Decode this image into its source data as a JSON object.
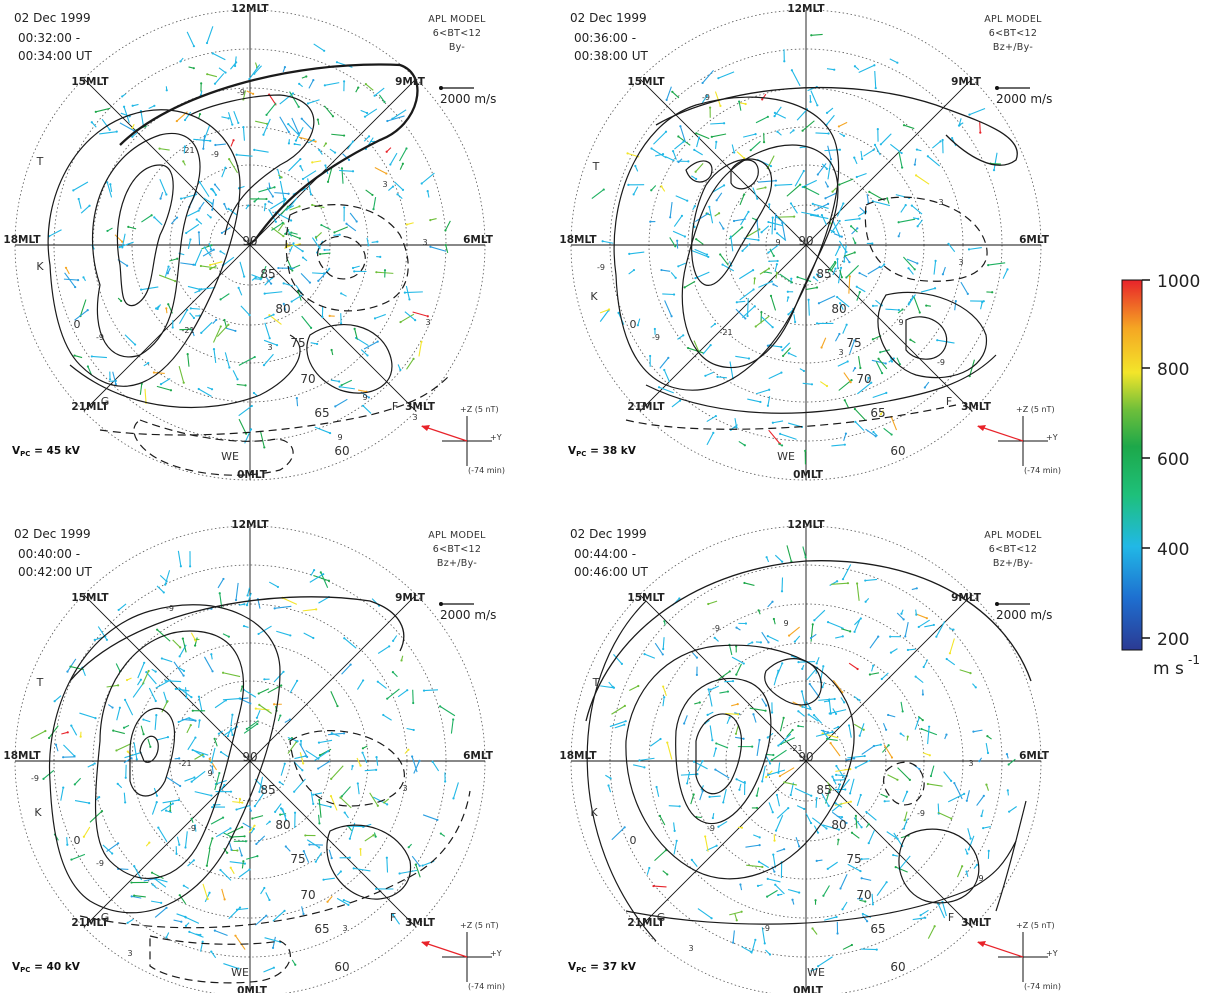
{
  "colors": {
    "contour": "#1a1a1a",
    "grid": "#555555",
    "imf_arrow": "#e8232a",
    "colorbar": [
      "#2b3a93",
      "#1e6fd0",
      "#21b8e6",
      "#1da84a",
      "#6fbf3a",
      "#f3e52a",
      "#f5a623",
      "#e8232a"
    ]
  },
  "colorbar": {
    "ticks": [
      "1000",
      "800",
      "600",
      "400",
      "200"
    ],
    "unit": "m s",
    "unit_exp": "-1"
  },
  "panels": [
    {
      "date": "02 Dec 1999",
      "time_start": "00:32:00 -",
      "time_end": "00:34:00 UT",
      "model": "APL MODEL",
      "model_bin": "6<BT<12",
      "model_imf": "By-",
      "scale_label": "2000 m/s",
      "vpc": "V",
      "vpc_sub": "PC",
      "vpc_value": " = 45 kV",
      "imf_z": "+Z  (5 nT)",
      "imf_y": "+Y",
      "imf_delay": "(-74 min)",
      "contour_labels": [
        "-9",
        "-9",
        "-21",
        "-21",
        "-9",
        "3",
        "3",
        "3",
        "3",
        "9",
        "3",
        "9"
      ],
      "sites": [
        "T",
        "K",
        "G",
        "F",
        "WE"
      ]
    },
    {
      "date": "02 Dec 1999",
      "time_start": "00:36:00 -",
      "time_end": "00:38:00 UT",
      "model": "APL MODEL",
      "model_bin": "6<BT<12",
      "model_imf": "Bz+/By-",
      "scale_label": "2000 m/s",
      "vpc": "V",
      "vpc_sub": "PC",
      "vpc_value": " = 38 kV",
      "imf_z": "+Z  (5 nT)",
      "imf_y": "+Y",
      "imf_delay": "(-74 min)",
      "contour_labels": [
        "-9",
        "-9",
        "-21",
        "-9",
        "9",
        "3",
        "3",
        "9",
        "-9",
        "3"
      ],
      "sites": [
        "T",
        "K",
        "G",
        "F",
        "WE"
      ]
    },
    {
      "date": "02 Dec 1999",
      "time_start": "00:40:00 -",
      "time_end": "00:42:00 UT",
      "model": "APL MODEL",
      "model_bin": "6<BT<12",
      "model_imf": "Bz+/By-",
      "scale_label": "2000 m/s",
      "vpc": "V",
      "vpc_sub": "PC",
      "vpc_value": " = 40 kV",
      "imf_z": "+Z  (5 nT)",
      "imf_y": "+Y",
      "imf_delay": "(-74 min)",
      "contour_labels": [
        "-9",
        "-21",
        "-9",
        "9",
        "-9",
        "-9",
        "3",
        "3",
        "3"
      ],
      "sites": [
        "T",
        "K",
        "G",
        "F",
        "WE"
      ]
    },
    {
      "date": "02 Dec 1999",
      "time_start": "00:44:00 -",
      "time_end": "00:46:00 UT",
      "model": "APL MODEL",
      "model_bin": "6<BT<12",
      "model_imf": "Bz+/By-",
      "scale_label": "2000 m/s",
      "vpc": "V",
      "vpc_sub": "PC",
      "vpc_value": " = 37 kV",
      "imf_z": "+Z  (5 nT)",
      "imf_y": "+Y",
      "imf_delay": "(-74 min)",
      "contour_labels": [
        "-9",
        "-21",
        "-9",
        "-9",
        "9",
        "-9",
        "3",
        "9",
        "3"
      ],
      "sites": [
        "T",
        "K",
        "G",
        "F",
        "WE"
      ]
    }
  ],
  "mlt_labels": {
    "n": "12MLT",
    "ne": "9MLT",
    "e": "6MLT",
    "se": "3MLT",
    "s": "0MLT",
    "sw": "21MLT",
    "w": "18MLT",
    "nw": "15MLT"
  },
  "lat_labels": [
    "90",
    "85",
    "80",
    "75",
    "70",
    "65",
    "60"
  ],
  "site_o": "0"
}
